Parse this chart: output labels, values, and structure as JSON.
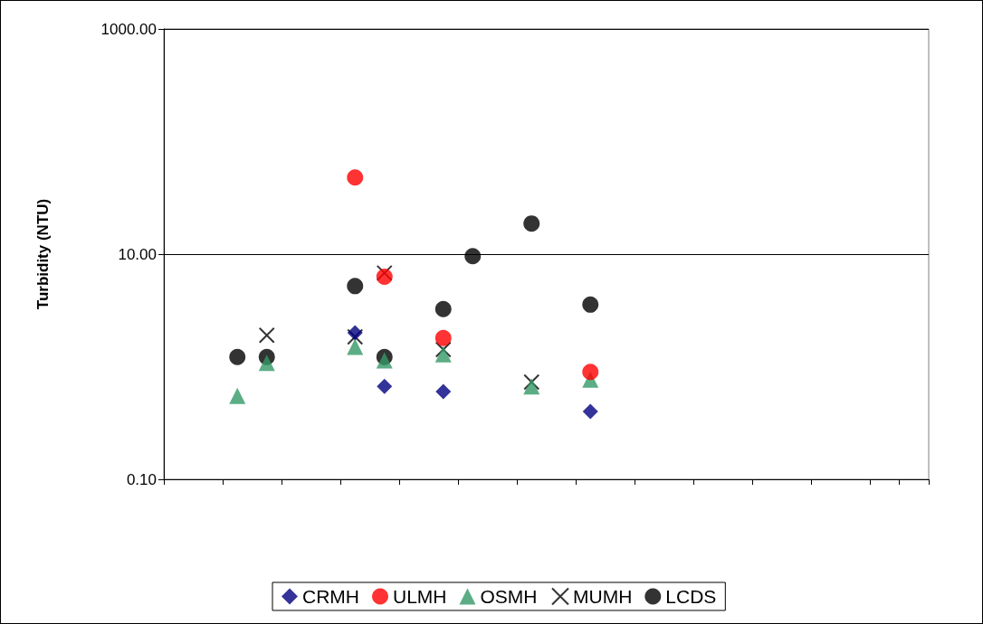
{
  "chart_data": {
    "type": "scatter",
    "ylabel": "Turbidity (NTU)",
    "log": "y",
    "ylim": [
      0.1,
      1000
    ],
    "yticks": [
      {
        "value": 0.1,
        "label": "0.10"
      },
      {
        "value": 10,
        "label": "10.00"
      },
      {
        "value": 1000,
        "label": "1000.00"
      }
    ],
    "categories": [
      null,
      null,
      null,
      null,
      null,
      null,
      null,
      null,
      null,
      null,
      null,
      null,
      null,
      null,
      null,
      null,
      null,
      null,
      null,
      null,
      null,
      null,
      null,
      null,
      null,
      null
    ],
    "grid": "y",
    "legend": "bottom",
    "series": [
      {
        "name": "CRMH",
        "color": "#000080",
        "marker": "diamond",
        "values": [
          null,
          null,
          null,
          null,
          null,
          null,
          2.0,
          0.67,
          null,
          0.6,
          null,
          null,
          null,
          null,
          0.4,
          null,
          null,
          null,
          null,
          null,
          null,
          null,
          null,
          null,
          null,
          null
        ]
      },
      {
        "name": "ULMH",
        "color": "#ff0000",
        "marker": "circle",
        "values": [
          null,
          null,
          null,
          null,
          null,
          null,
          48,
          6.3,
          null,
          1.8,
          null,
          null,
          null,
          null,
          0.9,
          null,
          null,
          null,
          null,
          null,
          null,
          null,
          null,
          null,
          null,
          null
        ]
      },
      {
        "name": "OSMH",
        "color": "#339966",
        "marker": "triangle",
        "values": [
          null,
          null,
          0.55,
          1.08,
          null,
          null,
          1.5,
          1.14,
          null,
          1.29,
          null,
          null,
          0.67,
          null,
          0.77,
          null,
          null,
          null,
          null,
          null,
          null,
          null,
          null,
          null,
          null,
          null
        ]
      },
      {
        "name": "MUMH",
        "color": "#000000",
        "marker": "cross",
        "values": [
          null,
          null,
          null,
          1.9,
          null,
          null,
          1.84,
          6.8,
          null,
          1.42,
          null,
          null,
          0.73,
          null,
          null,
          null,
          null,
          null,
          null,
          null,
          null,
          null,
          null,
          null,
          null,
          null
        ]
      },
      {
        "name": "LCDS",
        "color": "#000000",
        "marker": "circle",
        "values": [
          null,
          null,
          1.22,
          1.22,
          null,
          null,
          5.2,
          1.22,
          null,
          3.25,
          9.6,
          null,
          18.7,
          null,
          3.56,
          null,
          null,
          null,
          null,
          null,
          null,
          null,
          null,
          null,
          null,
          null
        ]
      }
    ]
  }
}
